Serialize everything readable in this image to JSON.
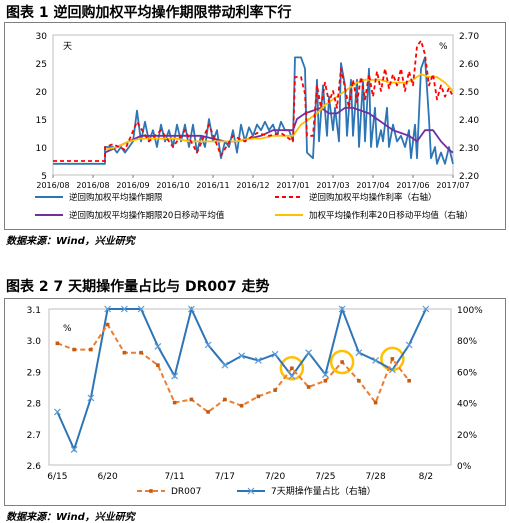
{
  "figure1": {
    "title": "图表 1 逆回购加权平均操作期限带动利率下行",
    "source": "数据来源：Wind，兴业研究",
    "chart_data": {
      "type": "line",
      "y_left_unit": "天",
      "y_right_unit": "%",
      "ylim_left": [
        5,
        30
      ],
      "ylim_right": [
        2.2,
        2.7
      ],
      "yticks_left": [
        "5",
        "10",
        "15",
        "20",
        "25",
        "30"
      ],
      "yticks_right": [
        "2.20",
        "2.30",
        "2.40",
        "2.50",
        "2.60",
        "2.70"
      ],
      "xticks": [
        "2016/08",
        "2016/08",
        "2016/09",
        "2016/10",
        "2016/11",
        "2016/12",
        "2017/01",
        "2017/03",
        "2017/04",
        "2017/06",
        "2017/07"
      ],
      "xlim": [
        0,
        100
      ],
      "legend": [
        "逆回购加权平均操作期限",
        "逆回购加权平均操作利率（右轴）",
        "逆回购加权平均操作期限20日移动平均值",
        "加权平均操作利率20日移动平均值（右轴）"
      ],
      "series": [
        {
          "name": "逆回购加权平均操作期限",
          "axis": "left",
          "color": "#2e75b6",
          "dash": "none",
          "points": [
            [
              0,
              7
            ],
            [
              5,
              7
            ],
            [
              8,
              7
            ],
            [
              13,
              7
            ],
            [
              13,
              10
            ],
            [
              15,
              10
            ],
            [
              16,
              9
            ],
            [
              17,
              10
            ],
            [
              18,
              9
            ],
            [
              19,
              10
            ],
            [
              20,
              11
            ],
            [
              21,
              16.5
            ],
            [
              22,
              11
            ],
            [
              23,
              14.5
            ],
            [
              24,
              11
            ],
            [
              25,
              13
            ],
            [
              26,
              10
            ],
            [
              27,
              14
            ],
            [
              28,
              11
            ],
            [
              29,
              13
            ],
            [
              30,
              10
            ],
            [
              31,
              14
            ],
            [
              32,
              11
            ],
            [
              33,
              14
            ],
            [
              34,
              10
            ],
            [
              35,
              14
            ],
            [
              36,
              9
            ],
            [
              37,
              12
            ],
            [
              38,
              10
            ],
            [
              39,
              15
            ],
            [
              40,
              11
            ],
            [
              41,
              13
            ],
            [
              42,
              8
            ],
            [
              43,
              11
            ],
            [
              44,
              10
            ],
            [
              45,
              13
            ],
            [
              46,
              9
            ],
            [
              47,
              14
            ],
            [
              48,
              11
            ],
            [
              49,
              13.5
            ],
            [
              50,
              12
            ],
            [
              51,
              14
            ],
            [
              52,
              13
            ],
            [
              53,
              14.5
            ],
            [
              54,
              13
            ],
            [
              55,
              14
            ],
            [
              56,
              12
            ],
            [
              57,
              14.5
            ],
            [
              58,
              13
            ],
            [
              59,
              13
            ],
            [
              60,
              11
            ],
            [
              60.5,
              26
            ],
            [
              62,
              26
            ],
            [
              63,
              24
            ],
            [
              63.5,
              9
            ],
            [
              65,
              8
            ],
            [
              66,
              22
            ],
            [
              66.5,
              11
            ],
            [
              67.5,
              21
            ],
            [
              68.5,
              12
            ],
            [
              69,
              19
            ],
            [
              70,
              13
            ],
            [
              70.5,
              17
            ],
            [
              71.5,
              11
            ],
            [
              72,
              25
            ],
            [
              73,
              21
            ],
            [
              73.5,
              12
            ],
            [
              74.5,
              22
            ],
            [
              75,
              12
            ],
            [
              76,
              22
            ],
            [
              76.5,
              10
            ],
            [
              77.5,
              22
            ],
            [
              78,
              11
            ],
            [
              79,
              24
            ],
            [
              79.5,
              10
            ],
            [
              80.5,
              17
            ],
            [
              81,
              10
            ],
            [
              82,
              13
            ],
            [
              82.5,
              11
            ],
            [
              83.5,
              17
            ],
            [
              84,
              10
            ],
            [
              85,
              14
            ],
            [
              86,
              11
            ],
            [
              87,
              12
            ],
            [
              88,
              10
            ],
            [
              89,
              13
            ],
            [
              89.5,
              8
            ],
            [
              90.5,
              14
            ],
            [
              91,
              8
            ],
            [
              92,
              24
            ],
            [
              93,
              26
            ],
            [
              94,
              15
            ],
            [
              94.5,
              8
            ],
            [
              95.5,
              10
            ],
            [
              96,
              7
            ],
            [
              97,
              9
            ],
            [
              98,
              7
            ],
            [
              99,
              10
            ],
            [
              100,
              7
            ]
          ]
        },
        {
          "name": "逆回购加权平均操作利率（右轴）",
          "axis": "right",
          "color": "#ff0000",
          "dash": "4,3",
          "points": [
            [
              0,
              2.25
            ],
            [
              13,
              2.25
            ],
            [
              13,
              2.3
            ],
            [
              15,
              2.31
            ],
            [
              18,
              2.29
            ],
            [
              21,
              2.39
            ],
            [
              24,
              2.32
            ],
            [
              27,
              2.36
            ],
            [
              30,
              2.3
            ],
            [
              33,
              2.36
            ],
            [
              36,
              2.28
            ],
            [
              39,
              2.38
            ],
            [
              42,
              2.27
            ],
            [
              45,
              2.34
            ],
            [
              48,
              2.32
            ],
            [
              51,
              2.35
            ],
            [
              54,
              2.34
            ],
            [
              57,
              2.35
            ],
            [
              60,
              2.32
            ],
            [
              60.5,
              2.55
            ],
            [
              62,
              2.55
            ],
            [
              63,
              2.49
            ],
            [
              63.5,
              2.34
            ],
            [
              65,
              2.34
            ],
            [
              66,
              2.52
            ],
            [
              67,
              2.44
            ],
            [
              68,
              2.53
            ],
            [
              69,
              2.46
            ],
            [
              70,
              2.5
            ],
            [
              71,
              2.44
            ],
            [
              72,
              2.58
            ],
            [
              73,
              2.51
            ],
            [
              74,
              2.44
            ],
            [
              75,
              2.54
            ],
            [
              76,
              2.46
            ],
            [
              77,
              2.55
            ],
            [
              78,
              2.47
            ],
            [
              79,
              2.56
            ],
            [
              80,
              2.48
            ],
            [
              81,
              2.57
            ],
            [
              82,
              2.5
            ],
            [
              83,
              2.58
            ],
            [
              84,
              2.51
            ],
            [
              85,
              2.56
            ],
            [
              86,
              2.52
            ],
            [
              87,
              2.58
            ],
            [
              88,
              2.5
            ],
            [
              89,
              2.57
            ],
            [
              90,
              2.52
            ],
            [
              91,
              2.66
            ],
            [
              92,
              2.68
            ],
            [
              93,
              2.63
            ],
            [
              94,
              2.52
            ],
            [
              95,
              2.56
            ],
            [
              96,
              2.47
            ],
            [
              97,
              2.52
            ],
            [
              98,
              2.48
            ],
            [
              99,
              2.51
            ],
            [
              100,
              2.48
            ]
          ]
        },
        {
          "name": "逆回购加权平均操作期限20日移动平均值",
          "axis": "left",
          "color": "#7030a0",
          "dash": "none",
          "points": [
            [
              13,
              9
            ],
            [
              16,
              10
            ],
            [
              19,
              11
            ],
            [
              22,
              12
            ],
            [
              25,
              12
            ],
            [
              28,
              12
            ],
            [
              31,
              12
            ],
            [
              34,
              12
            ],
            [
              37,
              12
            ],
            [
              40,
              11.5
            ],
            [
              43,
              11
            ],
            [
              46,
              11
            ],
            [
              49,
              11.5
            ],
            [
              52,
              12
            ],
            [
              55,
              13
            ],
            [
              58,
              13
            ],
            [
              60,
              13
            ],
            [
              61,
              15
            ],
            [
              63,
              16
            ],
            [
              65,
              16.5
            ],
            [
              67,
              17
            ],
            [
              69,
              16
            ],
            [
              71,
              16
            ],
            [
              73,
              17
            ],
            [
              75,
              17
            ],
            [
              77,
              16.5
            ],
            [
              79,
              16
            ],
            [
              81,
              15
            ],
            [
              83,
              14
            ],
            [
              85,
              13
            ],
            [
              87,
              12.5
            ],
            [
              89,
              12
            ],
            [
              91,
              11
            ],
            [
              93,
              13
            ],
            [
              95,
              13
            ],
            [
              97,
              11
            ],
            [
              99,
              9.5
            ],
            [
              100,
              9
            ]
          ]
        },
        {
          "name": "加权平均操作利率20日移动平均值（右轴）",
          "axis": "right",
          "color": "#ffc000",
          "dash": "none",
          "points": [
            [
              13,
              2.29
            ],
            [
              16,
              2.3
            ],
            [
              19,
              2.32
            ],
            [
              22,
              2.33
            ],
            [
              25,
              2.33
            ],
            [
              28,
              2.33
            ],
            [
              31,
              2.33
            ],
            [
              34,
              2.32
            ],
            [
              37,
              2.32
            ],
            [
              40,
              2.32
            ],
            [
              43,
              2.32
            ],
            [
              46,
              2.32
            ],
            [
              49,
              2.33
            ],
            [
              52,
              2.33
            ],
            [
              55,
              2.34
            ],
            [
              58,
              2.34
            ],
            [
              60,
              2.34
            ],
            [
              62,
              2.38
            ],
            [
              64,
              2.4
            ],
            [
              66,
              2.42
            ],
            [
              68,
              2.45
            ],
            [
              70,
              2.47
            ],
            [
              72,
              2.49
            ],
            [
              74,
              2.51
            ],
            [
              76,
              2.53
            ],
            [
              78,
              2.54
            ],
            [
              80,
              2.54
            ],
            [
              82,
              2.54
            ],
            [
              84,
              2.53
            ],
            [
              86,
              2.53
            ],
            [
              88,
              2.53
            ],
            [
              90,
              2.54
            ],
            [
              92,
              2.56
            ],
            [
              94,
              2.55
            ],
            [
              96,
              2.55
            ],
            [
              98,
              2.53
            ],
            [
              100,
              2.5
            ]
          ]
        }
      ]
    }
  },
  "figure2": {
    "title": "图表 2 7 天期操作量占比与 DR007 走势",
    "source": "数据来源：Wind，兴业研究",
    "chart_data": {
      "type": "line",
      "y_left_unit": "%",
      "ylim_left": [
        2.6,
        3.1
      ],
      "ylim_right": [
        0,
        100
      ],
      "yticks_left": [
        "2.6",
        "2.7",
        "2.8",
        "2.9",
        "3.0",
        "3.1"
      ],
      "yticks_right": [
        "0%",
        "20%",
        "40%",
        "60%",
        "80%",
        "100%"
      ],
      "categories": [
        "6/15",
        "",
        "",
        "6/20",
        "",
        "",
        "",
        "7/11",
        "",
        "",
        "7/17",
        "",
        "",
        "7/20",
        "",
        "",
        "7/25",
        "",
        "",
        "7/28",
        "",
        "",
        "8/2",
        ""
      ],
      "xlabel_indices": [
        0,
        3,
        7,
        10,
        13,
        16,
        19,
        22
      ],
      "legend": [
        "DR007",
        "7天期操作量占比（右轴）"
      ],
      "series": [
        {
          "name": "DR007",
          "axis": "left",
          "color": "#ed7d31",
          "dash": "5,3",
          "values": [
            2.99,
            2.97,
            2.97,
            3.05,
            2.96,
            2.96,
            2.92,
            2.8,
            2.81,
            2.77,
            2.81,
            2.79,
            2.82,
            2.84,
            2.91,
            2.85,
            2.87,
            2.93,
            2.87,
            2.8,
            2.94,
            2.87,
            null,
            null
          ]
        },
        {
          "name": "7天期操作量占比（右轴）",
          "axis": "right",
          "color": "#2e75b6",
          "dash": "none",
          "values": [
            34,
            10,
            43,
            100,
            100,
            100,
            76,
            57,
            100,
            77,
            64,
            70,
            67,
            71,
            57,
            72,
            58,
            100,
            72,
            67,
            61,
            77,
            100,
            null
          ]
        }
      ],
      "highlights": [
        14,
        17,
        20
      ]
    }
  }
}
